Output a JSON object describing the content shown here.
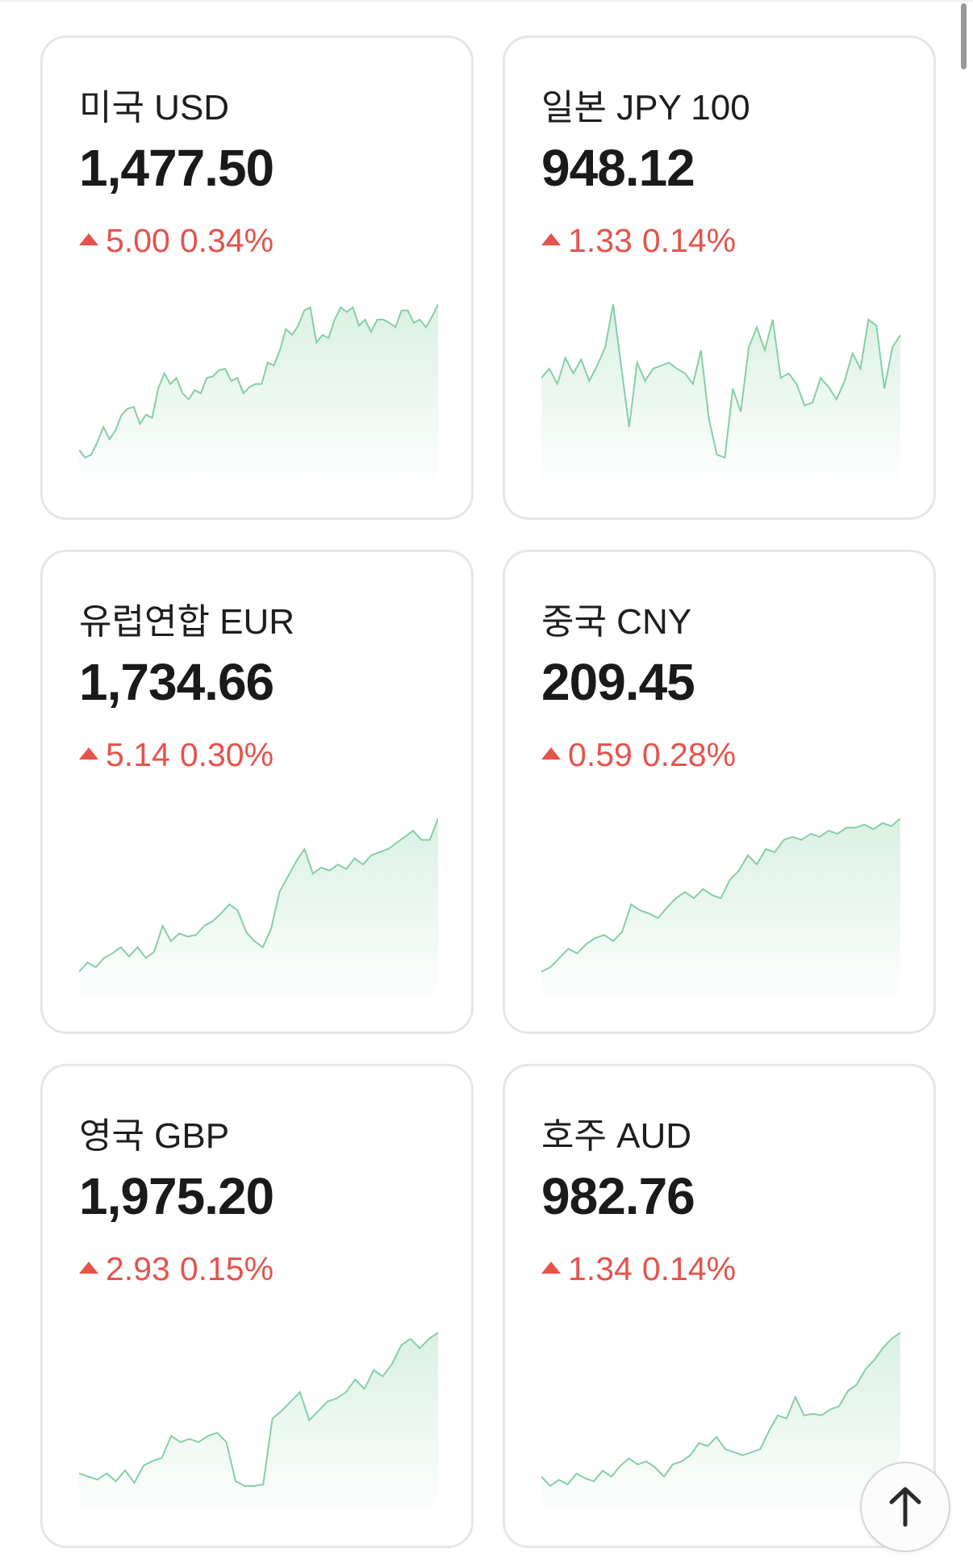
{
  "colors": {
    "up": "#e5534b",
    "line": "#86cfa6",
    "fill": "#d6efe0"
  },
  "currencies": [
    {
      "name": "미국 USD",
      "value": "1,477.50",
      "change": "5.00",
      "percent": "0.34%",
      "direction": "up",
      "series": [
        5,
        0,
        2,
        10,
        20,
        12,
        18,
        28,
        32,
        33,
        22,
        28,
        26,
        45,
        55,
        48,
        52,
        42,
        38,
        44,
        42,
        52,
        53,
        57,
        58,
        50,
        52,
        42,
        46,
        48,
        48,
        62,
        60,
        70,
        84,
        80,
        86,
        96,
        98,
        75,
        80,
        78,
        90,
        98,
        95,
        98,
        86,
        90,
        82,
        90,
        90,
        88,
        85,
        96,
        96,
        88,
        90,
        85,
        92,
        100
      ]
    },
    {
      "name": "일본 JPY 100",
      "value": "948.12",
      "change": "1.33",
      "percent": "0.14%",
      "direction": "up",
      "series": [
        52,
        58,
        48,
        65,
        55,
        64,
        50,
        60,
        72,
        100,
        60,
        20,
        62,
        50,
        58,
        60,
        62,
        58,
        55,
        48,
        70,
        25,
        2,
        0,
        45,
        30,
        72,
        85,
        70,
        90,
        52,
        55,
        48,
        34,
        36,
        52,
        46,
        38,
        50,
        68,
        58,
        90,
        86,
        45,
        72,
        80
      ]
    },
    {
      "name": "유럽연합 EUR",
      "value": "1,734.66",
      "change": "5.14",
      "percent": "0.30%",
      "direction": "up",
      "series": [
        0,
        6,
        3,
        9,
        12,
        16,
        10,
        16,
        9,
        13,
        30,
        20,
        25,
        23,
        24,
        30,
        33,
        38,
        44,
        40,
        26,
        20,
        16,
        28,
        52,
        62,
        72,
        80,
        64,
        68,
        66,
        70,
        67,
        74,
        70,
        76,
        78,
        80,
        84,
        88,
        92,
        86,
        86,
        100
      ]
    },
    {
      "name": "중국 CNY",
      "value": "209.45",
      "change": "0.59",
      "percent": "0.28%",
      "direction": "up",
      "series": [
        0,
        3,
        9,
        15,
        12,
        18,
        22,
        24,
        20,
        26,
        44,
        40,
        38,
        35,
        42,
        48,
        52,
        48,
        54,
        50,
        48,
        60,
        66,
        76,
        70,
        80,
        78,
        86,
        88,
        86,
        90,
        88,
        92,
        90,
        94,
        94,
        96,
        93,
        97,
        95,
        100
      ]
    },
    {
      "name": "영국 GBP",
      "value": "1,975.20",
      "change": "2.93",
      "percent": "0.15%",
      "direction": "up",
      "series": [
        10,
        8,
        6,
        10,
        5,
        12,
        4,
        15,
        18,
        20,
        34,
        30,
        32,
        30,
        34,
        36,
        30,
        5,
        2,
        2,
        3,
        45,
        50,
        56,
        62,
        44,
        50,
        56,
        58,
        62,
        70,
        64,
        76,
        72,
        80,
        92,
        96,
        90,
        96,
        100
      ]
    },
    {
      "name": "호주 AUD",
      "value": "982.76",
      "change": "1.34",
      "percent": "0.14%",
      "direction": "up",
      "series": [
        6,
        0,
        4,
        1,
        8,
        5,
        3,
        10,
        6,
        13,
        18,
        14,
        16,
        12,
        6,
        14,
        16,
        20,
        28,
        26,
        32,
        24,
        22,
        20,
        22,
        24,
        36,
        46,
        44,
        58,
        46,
        47,
        46,
        50,
        52,
        62,
        66,
        76,
        82,
        90,
        96,
        100
      ]
    }
  ],
  "scroll_top": {
    "icon": "arrow-up-icon"
  }
}
